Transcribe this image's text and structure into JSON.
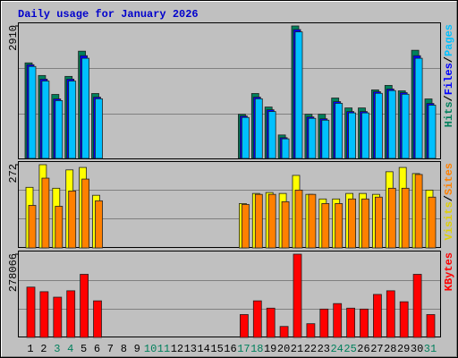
{
  "title": "Daily usage for January 2026",
  "legend_separator": "/",
  "chart_data": [
    {
      "type": "bar",
      "ylim": [
        0,
        2910
      ],
      "yticks": [
        2910
      ],
      "series": [
        {
          "name": "Hits",
          "color": "#00805c",
          "values": [
            2099,
            1822,
            1406,
            1802,
            2356,
            1426,
            0,
            0,
            0,
            0,
            0,
            0,
            0,
            0,
            0,
            0,
            970,
            1426,
            1129,
            515,
            2910,
            970,
            970,
            1327,
            1109,
            1109,
            1505,
            1604,
            1485,
            2376,
            1307
          ]
        },
        {
          "name": "Files",
          "color": "#0000ff",
          "values": [
            2059,
            1742,
            1307,
            1742,
            2257,
            1346,
            0,
            0,
            0,
            0,
            0,
            0,
            0,
            0,
            0,
            0,
            931,
            1346,
            1069,
            455,
            2831,
            911,
            871,
            1247,
            1030,
            1030,
            1465,
            1525,
            1445,
            2257,
            1208
          ]
        },
        {
          "name": "Pages",
          "color": "#00c0ff",
          "values": [
            2020,
            1700,
            1270,
            1700,
            2200,
            1310,
            0,
            0,
            0,
            0,
            0,
            0,
            0,
            0,
            0,
            0,
            900,
            1310,
            1030,
            430,
            2780,
            880,
            840,
            1210,
            1000,
            1000,
            1430,
            1490,
            1410,
            2200,
            1170
          ]
        }
      ]
    },
    {
      "type": "bar",
      "ylim": [
        0,
        272
      ],
      "yticks": [
        272
      ],
      "series": [
        {
          "name": "Visits",
          "color": "#ffff00",
          "values": [
            198,
            272,
            195,
            255,
            263,
            172,
            0,
            0,
            0,
            0,
            0,
            0,
            0,
            0,
            0,
            0,
            145,
            178,
            181,
            178,
            237,
            175,
            160,
            160,
            178,
            178,
            175,
            249,
            263,
            243,
            189
          ]
        },
        {
          "name": "Sites",
          "color": "#ff8000",
          "values": [
            139,
            228,
            136,
            186,
            225,
            154,
            0,
            0,
            0,
            0,
            0,
            0,
            0,
            0,
            0,
            0,
            142,
            175,
            175,
            151,
            189,
            175,
            145,
            145,
            160,
            160,
            166,
            195,
            195,
            240,
            166
          ]
        }
      ]
    },
    {
      "type": "bar",
      "ylim": [
        0,
        278066
      ],
      "yticks": [
        278066
      ],
      "categories": [
        "1",
        "2",
        "3",
        "4",
        "5",
        "6",
        "7",
        "8",
        "9",
        "10",
        "11",
        "12",
        "13",
        "14",
        "15",
        "16",
        "17",
        "18",
        "19",
        "20",
        "21",
        "22",
        "23",
        "24",
        "25",
        "26",
        "27",
        "28",
        "29",
        "30",
        "31"
      ],
      "category_colors": [
        "#000000",
        "#000000",
        "#00805c",
        "#00805c",
        "#000000",
        "#000000",
        "#000000",
        "#000000",
        "#000000",
        "#00805c",
        "#00805c",
        "#000000",
        "#000000",
        "#000000",
        "#000000",
        "#000000",
        "#00805c",
        "#00805c",
        "#000000",
        "#000000",
        "#000000",
        "#000000",
        "#000000",
        "#00805c",
        "#00805c",
        "#000000",
        "#000000",
        "#000000",
        "#000000",
        "#000000",
        "#00805c"
      ],
      "series": [
        {
          "name": "KBytes",
          "color": "#ff0000",
          "values": [
            168080,
            152800,
            134464,
            155856,
            210864,
            122240,
            0,
            0,
            0,
            0,
            0,
            0,
            0,
            0,
            0,
            0,
            76400,
            122240,
            97792,
            36672,
            278066,
            45840,
            94736,
            113072,
            97792,
            94736,
            143632,
            155856,
            119184,
            210864,
            76400
          ]
        }
      ]
    }
  ]
}
